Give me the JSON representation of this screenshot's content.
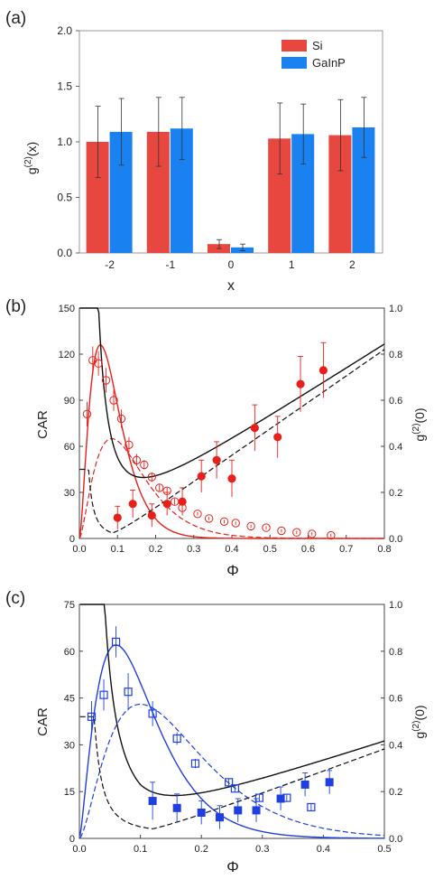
{
  "figure": {
    "colors": {
      "si": "#e8473f",
      "gainp": "#1a82f0",
      "black": "#111111",
      "red": "#e8201a",
      "blue": "#1f3fe0"
    }
  },
  "chart_data": [
    {
      "panel_label": "(a)",
      "type": "bar",
      "xlabel": "x",
      "ylabel": "g(2)(x)",
      "ylim": [
        0,
        2.0
      ],
      "yticks": [
        "0.0",
        "0.5",
        "1.0",
        "1.5",
        "2.0"
      ],
      "categories": [
        "-2",
        "-1",
        "0",
        "1",
        "2"
      ],
      "legend_position": "top-right",
      "series": [
        {
          "name": "Si",
          "values": [
            1.0,
            1.09,
            0.08,
            1.03,
            1.06
          ],
          "errors": [
            0.32,
            0.31,
            0.04,
            0.32,
            0.32
          ]
        },
        {
          "name": "GaInP",
          "values": [
            1.09,
            1.12,
            0.05,
            1.07,
            1.13
          ],
          "errors": [
            0.3,
            0.28,
            0.03,
            0.27,
            0.27
          ]
        }
      ]
    },
    {
      "panel_label": "(b)",
      "type": "scatter",
      "xlabel": "Φ",
      "ylabel_left": "CAR",
      "ylabel_right": "g(2)(0)",
      "xlim": [
        0,
        0.8
      ],
      "ylim_left": [
        0,
        150
      ],
      "ylim_right": [
        0,
        1.0
      ],
      "xticks": [
        "0.0",
        "0.1",
        "0.2",
        "0.3",
        "0.4",
        "0.5",
        "0.6",
        "0.7",
        "0.8"
      ],
      "yticks_left": [
        "0",
        "30",
        "60",
        "90",
        "120",
        "150"
      ],
      "yticks_right": [
        "0.0",
        "0.2",
        "0.4",
        "0.6",
        "0.8",
        "1.0"
      ],
      "car_points": {
        "x": [
          0.02,
          0.035,
          0.05,
          0.07,
          0.09,
          0.11,
          0.13,
          0.15,
          0.17,
          0.19,
          0.21,
          0.23,
          0.25,
          0.27,
          0.31,
          0.34,
          0.38,
          0.41,
          0.45,
          0.49,
          0.53,
          0.57,
          0.61,
          0.66
        ],
        "y": [
          81,
          116,
          114,
          103,
          90,
          78,
          61,
          51,
          48,
          40,
          33,
          31,
          24,
          20,
          16,
          13,
          11,
          10,
          8,
          7,
          5,
          4,
          3,
          2
        ],
        "err": [
          8,
          9,
          8,
          8,
          7,
          6,
          5,
          4,
          3,
          3,
          2,
          2,
          2,
          1,
          1,
          1,
          1,
          1,
          1,
          1,
          1,
          1,
          1,
          1
        ]
      },
      "g2_points": {
        "x": [
          0.1,
          0.14,
          0.19,
          0.23,
          0.27,
          0.32,
          0.36,
          0.4,
          0.46,
          0.52,
          0.58,
          0.64
        ],
        "y": [
          0.09,
          0.15,
          0.1,
          0.15,
          0.16,
          0.27,
          0.34,
          0.26,
          0.48,
          0.44,
          0.67,
          0.73
        ],
        "err": [
          0.05,
          0.06,
          0.05,
          0.05,
          0.06,
          0.07,
          0.08,
          0.08,
          0.1,
          0.09,
          0.12,
          0.12
        ]
      }
    },
    {
      "panel_label": "(c)",
      "type": "scatter",
      "xlabel": "Φ",
      "ylabel_left": "CAR",
      "ylabel_right": "g(2)(0)",
      "xlim": [
        0,
        0.5
      ],
      "ylim_left": [
        0,
        75
      ],
      "ylim_right": [
        0,
        1.0
      ],
      "xticks": [
        "0.0",
        "0.1",
        "0.2",
        "0.3",
        "0.4",
        "0.5"
      ],
      "yticks_left": [
        "0",
        "15",
        "30",
        "45",
        "60",
        "75"
      ],
      "yticks_right": [
        "0.0",
        "0.2",
        "0.4",
        "0.6",
        "0.8",
        "1.0"
      ],
      "car_points": {
        "x": [
          0.02,
          0.04,
          0.06,
          0.08,
          0.12,
          0.16,
          0.19,
          0.245,
          0.255,
          0.295,
          0.34,
          0.38
        ],
        "y": [
          39,
          46,
          63,
          47,
          40,
          32,
          24,
          18,
          16,
          13,
          13,
          10
        ],
        "err": [
          5,
          5,
          5,
          6,
          4,
          2,
          1.5,
          1,
          1,
          1,
          1,
          1
        ]
      },
      "g2_points": {
        "x": [
          0.12,
          0.16,
          0.2,
          0.23,
          0.26,
          0.29,
          0.33,
          0.37,
          0.41
        ],
        "y": [
          0.16,
          0.13,
          0.11,
          0.09,
          0.12,
          0.12,
          0.17,
          0.23,
          0.24
        ],
        "err": [
          0.08,
          0.06,
          0.05,
          0.05,
          0.05,
          0.05,
          0.05,
          0.05,
          0.05
        ]
      }
    }
  ]
}
